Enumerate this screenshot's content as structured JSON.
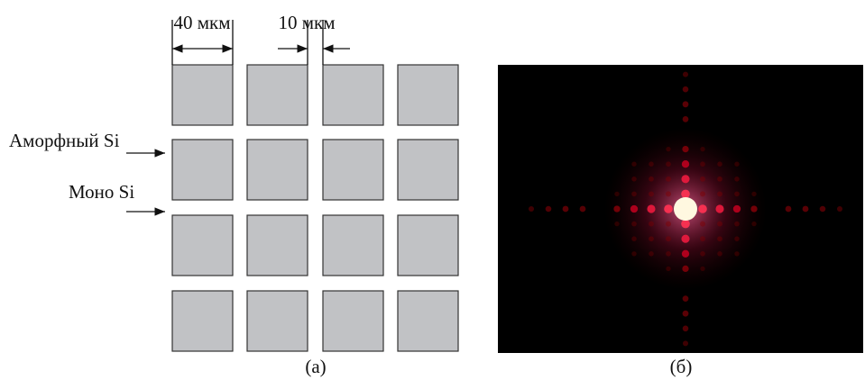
{
  "labels": {
    "period": "40 мкм",
    "gap": "10 мкм",
    "amorphous": "Аморфный Si",
    "mono": "Моно Si"
  },
  "captions": {
    "left": "(а)",
    "right": "(б)"
  }
}
